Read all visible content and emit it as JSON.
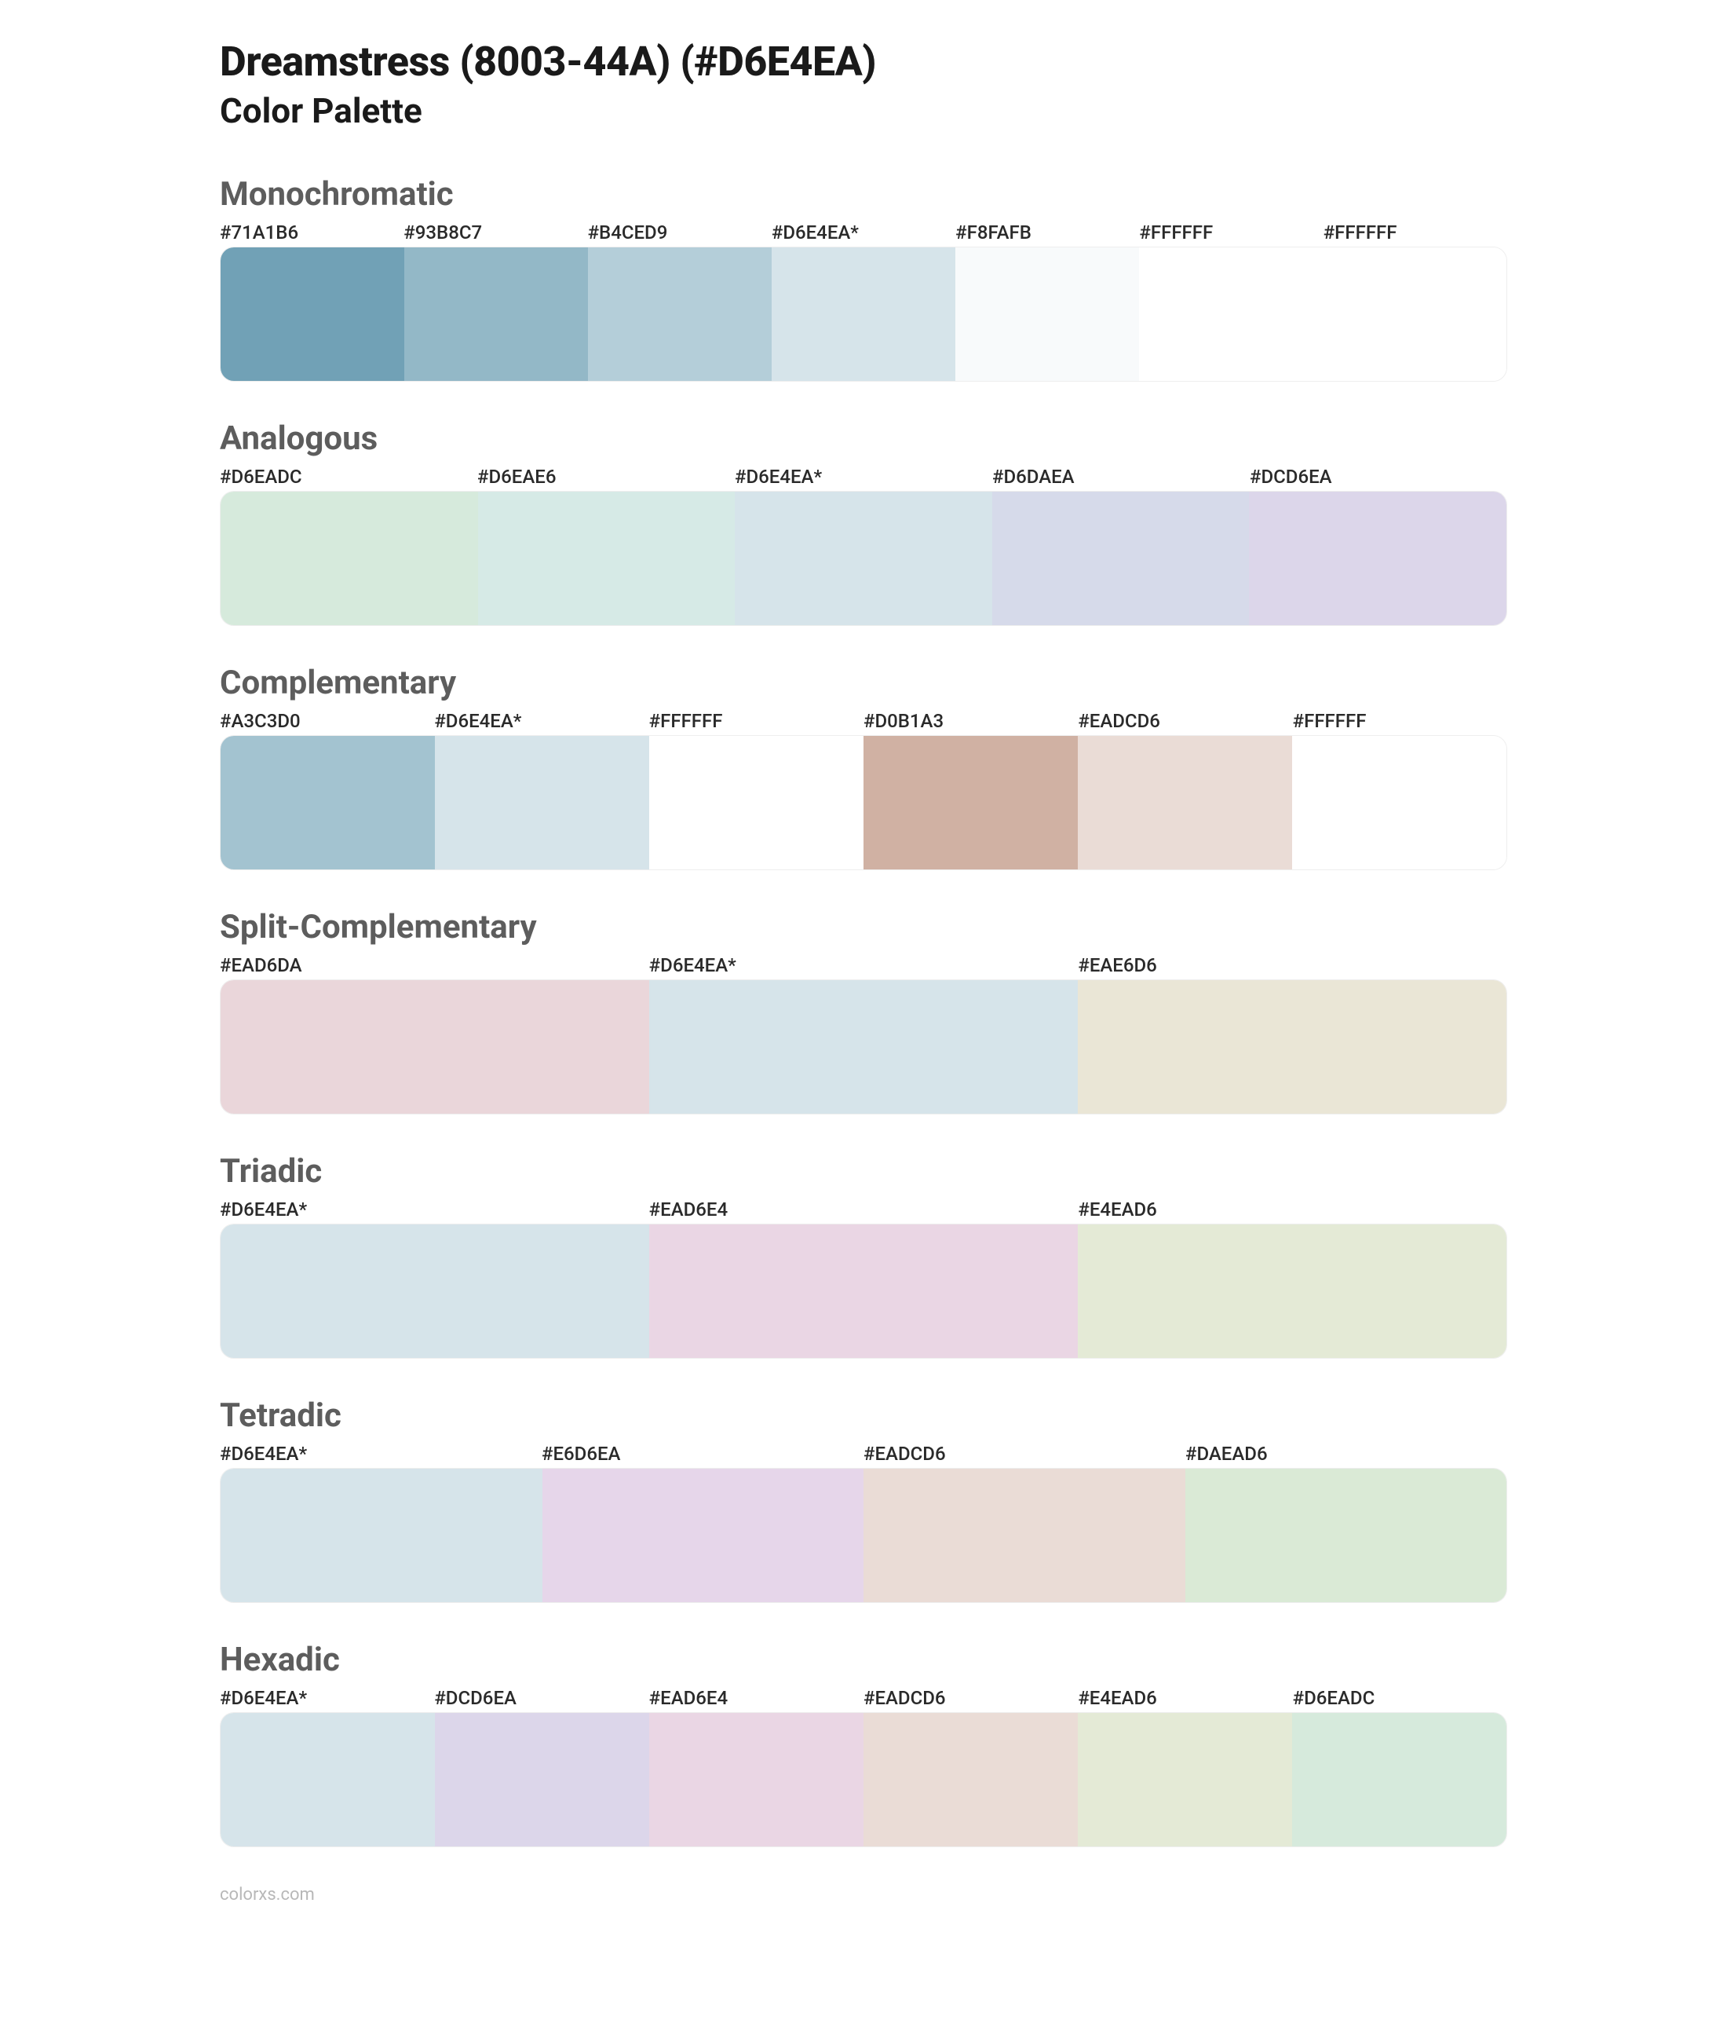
{
  "page": {
    "title": "Dreamstress (8003-44A) (#D6E4EA)",
    "subtitle": "Color Palette",
    "footer": "colorxs.com",
    "base_color": "#D6E4EA",
    "colors": {
      "text_dark": "#1a1a1a",
      "text_gray": "#5d5d5d",
      "text_label": "#2a2a2a",
      "text_footer": "#b8b8b8",
      "background": "#ffffff",
      "border": "#eeeeee"
    },
    "typography": {
      "title_fontsize": 52,
      "subtitle_fontsize": 44,
      "section_title_fontsize": 42,
      "label_fontsize": 24,
      "footer_fontsize": 22
    },
    "swatch_height": 170,
    "border_radius": 18
  },
  "sections": [
    {
      "title": "Monochromatic",
      "swatches": [
        {
          "label": "#71A1B6",
          "color": "#71A1B6"
        },
        {
          "label": "#93B8C7",
          "color": "#93B8C7"
        },
        {
          "label": "#B4CED9",
          "color": "#B4CED9"
        },
        {
          "label": "#D6E4EA*",
          "color": "#D6E4EA"
        },
        {
          "label": "#F8FAFB",
          "color": "#F8FAFB"
        },
        {
          "label": "#FFFFFF",
          "color": "#FFFFFF"
        },
        {
          "label": "#FFFFFF",
          "color": "#FFFFFF"
        }
      ]
    },
    {
      "title": "Analogous",
      "swatches": [
        {
          "label": "#D6EADC",
          "color": "#D6EADC"
        },
        {
          "label": "#D6EAE6",
          "color": "#D6EAE6"
        },
        {
          "label": "#D6E4EA*",
          "color": "#D6E4EA"
        },
        {
          "label": "#D6DAEA",
          "color": "#D6DAEA"
        },
        {
          "label": "#DCD6EA",
          "color": "#DCD6EA"
        }
      ]
    },
    {
      "title": "Complementary",
      "swatches": [
        {
          "label": "#A3C3D0",
          "color": "#A3C3D0"
        },
        {
          "label": "#D6E4EA*",
          "color": "#D6E4EA"
        },
        {
          "label": "#FFFFFF",
          "color": "#FFFFFF"
        },
        {
          "label": "#D0B1A3",
          "color": "#D0B1A3"
        },
        {
          "label": "#EADCD6",
          "color": "#EADCD6"
        },
        {
          "label": "#FFFFFF",
          "color": "#FFFFFF"
        }
      ]
    },
    {
      "title": "Split-Complementary",
      "swatches": [
        {
          "label": "#EAD6DA",
          "color": "#EAD6DA"
        },
        {
          "label": "#D6E4EA*",
          "color": "#D6E4EA"
        },
        {
          "label": "#EAE6D6",
          "color": "#EAE6D6"
        }
      ]
    },
    {
      "title": "Triadic",
      "swatches": [
        {
          "label": "#D6E4EA*",
          "color": "#D6E4EA"
        },
        {
          "label": "#EAD6E4",
          "color": "#EAD6E4"
        },
        {
          "label": "#E4EAD6",
          "color": "#E4EAD6"
        }
      ]
    },
    {
      "title": "Tetradic",
      "swatches": [
        {
          "label": "#D6E4EA*",
          "color": "#D6E4EA"
        },
        {
          "label": "#E6D6EA",
          "color": "#E6D6EA"
        },
        {
          "label": "#EADCD6",
          "color": "#EADCD6"
        },
        {
          "label": "#DAEAD6",
          "color": "#DAEAD6"
        }
      ]
    },
    {
      "title": "Hexadic",
      "swatches": [
        {
          "label": "#D6E4EA*",
          "color": "#D6E4EA"
        },
        {
          "label": "#DCD6EA",
          "color": "#DCD6EA"
        },
        {
          "label": "#EAD6E4",
          "color": "#EAD6E4"
        },
        {
          "label": "#EADCD6",
          "color": "#EADCD6"
        },
        {
          "label": "#E4EAD6",
          "color": "#E4EAD6"
        },
        {
          "label": "#D6EADC",
          "color": "#D6EADC"
        }
      ]
    }
  ]
}
